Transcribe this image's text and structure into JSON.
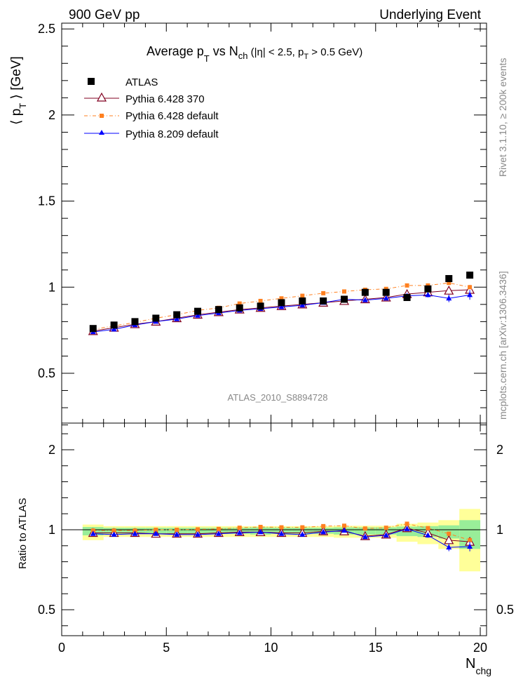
{
  "header": {
    "left": "900 GeV pp",
    "right": "Underlying Event"
  },
  "side_labels": {
    "rivet": "Rivet 3.1.10, ≥ 200k events",
    "mcplots": "mcplots.cern.ch [arXiv:1306.3436]"
  },
  "chart_data": [
    {
      "type": "scatter",
      "title_main": "Average p",
      "title_main_sub": "T",
      "title_vs": " vs N",
      "title_vs_sub": "ch",
      "title_cuts_a": " (|η| < 2.5, p",
      "title_cuts_sub": "T",
      "title_cuts_b": " > 0.5 GeV)",
      "ylabel_a": "⟨ p",
      "ylabel_sub": "T",
      "ylabel_b": " ⟩ [GeV]",
      "xlabel": "N",
      "xlabel_sub": "chg",
      "analysis_id": "ATLAS_2010_S8894728",
      "xlim": [
        0,
        20.3
      ],
      "ylim": [
        0.2,
        2.55
      ],
      "xticks": [
        "0",
        "5",
        "10",
        "15",
        "20"
      ],
      "yticks": [
        "0.5",
        "1",
        "1.5",
        "2",
        "2.5"
      ],
      "legend_position": "top-left",
      "grid": false,
      "x": [
        1.5,
        2.5,
        3.5,
        4.5,
        5.5,
        6.5,
        7.5,
        8.5,
        9.5,
        10.5,
        11.5,
        12.5,
        13.5,
        14.5,
        15.5,
        16.5,
        17.5,
        18.5,
        19.5
      ],
      "series": [
        {
          "name": "ATLAS",
          "color": "#000000",
          "marker": "square",
          "values": [
            0.76,
            0.78,
            0.8,
            0.82,
            0.84,
            0.86,
            0.87,
            0.88,
            0.89,
            0.91,
            0.92,
            0.92,
            0.93,
            0.97,
            0.97,
            0.94,
            0.99,
            1.05,
            1.07
          ]
        },
        {
          "name": "Pythia 6.428 370",
          "color": "#800020",
          "marker": "open-triangle",
          "values": [
            0.745,
            0.765,
            0.785,
            0.8,
            0.82,
            0.84,
            0.855,
            0.87,
            0.88,
            0.89,
            0.9,
            0.91,
            0.92,
            0.93,
            0.94,
            0.96,
            0.97,
            0.98,
            0.985
          ]
        },
        {
          "name": "Pythia 6.428 default",
          "color": "#ff8020",
          "marker": "filled-square",
          "values": [
            0.755,
            0.775,
            0.795,
            0.82,
            0.84,
            0.865,
            0.88,
            0.905,
            0.92,
            0.935,
            0.95,
            0.965,
            0.975,
            0.985,
            0.99,
            1.01,
            1.01,
            1.025,
            1.0
          ]
        },
        {
          "name": "Pythia 8.209 default",
          "color": "#0000ff",
          "marker": "filled-triangle",
          "values": [
            0.74,
            0.755,
            0.78,
            0.8,
            0.815,
            0.835,
            0.85,
            0.865,
            0.875,
            0.885,
            0.895,
            0.91,
            0.93,
            0.925,
            0.935,
            0.95,
            0.955,
            0.935,
            0.955
          ],
          "errors": [
            0.003,
            0.003,
            0.003,
            0.003,
            0.004,
            0.004,
            0.005,
            0.005,
            0.005,
            0.006,
            0.007,
            0.008,
            0.008,
            0.009,
            0.01,
            0.012,
            0.014,
            0.022,
            0.028
          ]
        }
      ]
    },
    {
      "type": "scatter",
      "ylabel": "Ratio to ATLAS",
      "xlim": [
        0,
        20.3
      ],
      "ylim": [
        0.35,
        2.3
      ],
      "yticks": [
        "0.5",
        "1",
        "2"
      ],
      "reference_line": 1,
      "x": [
        1.5,
        2.5,
        3.5,
        4.5,
        5.5,
        6.5,
        7.5,
        8.5,
        9.5,
        10.5,
        11.5,
        12.5,
        13.5,
        14.5,
        15.5,
        16.5,
        17.5,
        18.5,
        19.5
      ],
      "band_edges": [
        1,
        2,
        3,
        4,
        5,
        6,
        7,
        8,
        9,
        10,
        11,
        12,
        13,
        14,
        15,
        16,
        17,
        18,
        19,
        20
      ],
      "band_inner": [
        0.035,
        0.025,
        0.025,
        0.025,
        0.025,
        0.025,
        0.025,
        0.025,
        0.03,
        0.025,
        0.025,
        0.025,
        0.03,
        0.03,
        0.03,
        0.04,
        0.045,
        0.055,
        0.12
      ],
      "band_outer": [
        0.065,
        0.045,
        0.045,
        0.045,
        0.045,
        0.045,
        0.045,
        0.045,
        0.045,
        0.045,
        0.045,
        0.045,
        0.05,
        0.05,
        0.05,
        0.075,
        0.09,
        0.12,
        0.26
      ],
      "series": [
        {
          "name": "Pythia 6.428 370",
          "color": "#800020",
          "values": [
            0.98,
            0.98,
            0.98,
            0.975,
            0.975,
            0.975,
            0.98,
            0.985,
            0.985,
            0.98,
            0.98,
            0.99,
            0.99,
            0.96,
            0.97,
            1.02,
            0.98,
            0.935,
            0.925
          ]
        },
        {
          "name": "Pythia 6.428 default",
          "color": "#ff8020",
          "values": [
            0.995,
            0.995,
            0.995,
            1.0,
            1.0,
            1.005,
            1.01,
            1.025,
            1.035,
            1.03,
            1.03,
            1.045,
            1.05,
            1.015,
            1.025,
            1.075,
            1.02,
            0.975,
            0.935
          ]
        },
        {
          "name": "Pythia 8.209 default",
          "color": "#0000ff",
          "values": [
            0.975,
            0.97,
            0.975,
            0.975,
            0.97,
            0.97,
            0.975,
            0.98,
            0.985,
            0.975,
            0.97,
            0.985,
            0.995,
            0.955,
            0.965,
            1.01,
            0.965,
            0.89,
            0.895
          ],
          "errors": [
            0.004,
            0.004,
            0.004,
            0.004,
            0.005,
            0.005,
            0.006,
            0.006,
            0.006,
            0.007,
            0.008,
            0.009,
            0.009,
            0.01,
            0.011,
            0.013,
            0.015,
            0.024,
            0.03
          ]
        }
      ]
    }
  ]
}
